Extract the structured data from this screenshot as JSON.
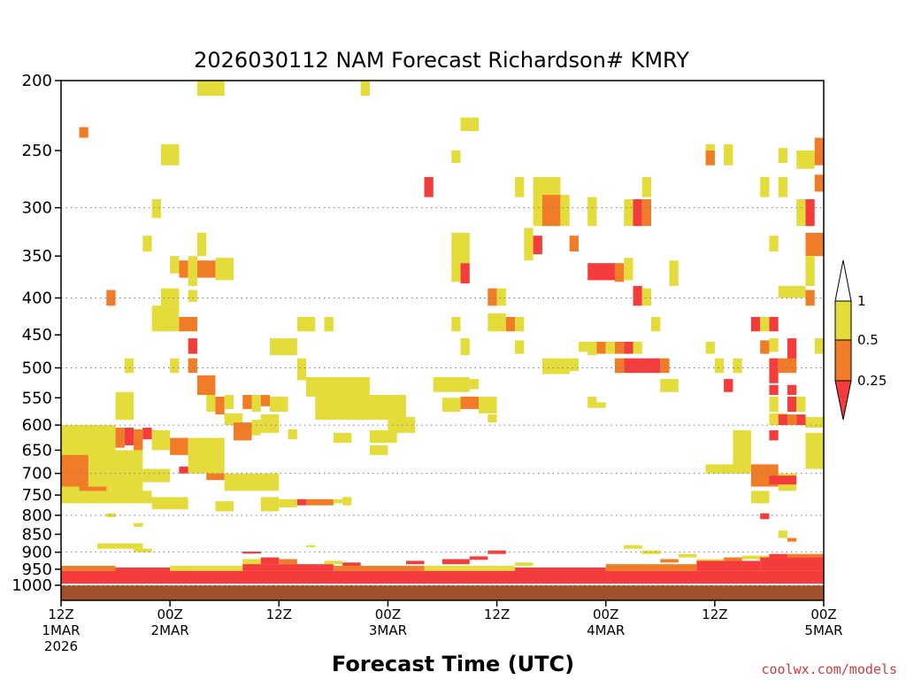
{
  "chart_data": {
    "type": "heatmap",
    "title": "2026030112 NAM Forecast Richardson# KMRY",
    "xlabel": "Forecast Time (UTC)",
    "ylabel": "",
    "credit": "coolwx.com/models",
    "x_range_hours": [
      0,
      84
    ],
    "y_axis": {
      "scale": "log",
      "range": [
        1000,
        200
      ]
    },
    "y_ticks": [
      200,
      250,
      300,
      350,
      400,
      450,
      500,
      550,
      600,
      650,
      700,
      750,
      800,
      850,
      900,
      950,
      1000
    ],
    "gridlines_at": [
      300,
      400,
      500,
      600,
      700,
      800,
      900,
      1000
    ],
    "x_ticks": [
      {
        "hour": 0,
        "lines": [
          "12Z",
          "1MAR",
          "2026"
        ]
      },
      {
        "hour": 12,
        "lines": [
          "00Z",
          "2MAR"
        ]
      },
      {
        "hour": 24,
        "lines": [
          "12Z"
        ]
      },
      {
        "hour": 36,
        "lines": [
          "00Z",
          "3MAR"
        ]
      },
      {
        "hour": 48,
        "lines": [
          "12Z"
        ]
      },
      {
        "hour": 60,
        "lines": [
          "00Z",
          "4MAR"
        ]
      },
      {
        "hour": 72,
        "lines": [
          "12Z"
        ]
      },
      {
        "hour": 84,
        "lines": [
          "00Z",
          "5MAR"
        ]
      }
    ],
    "legend": {
      "placement": "right",
      "labels": [
        "1",
        "0.5",
        "0.25"
      ],
      "bands": [
        {
          "range": [
            0.5,
            1
          ],
          "color": "#e3dc3a"
        },
        {
          "range": [
            0.25,
            0.5
          ],
          "color": "#f07c28"
        },
        {
          "range": [
            0,
            0.25
          ],
          "color": "#f53c3c"
        }
      ]
    },
    "colors": {
      "yellow": "#e3dc3a",
      "orange": "#f07c28",
      "red": "#f53c3c",
      "ground": "#a0522d"
    },
    "ground_below_hPa": 1000,
    "cells_format": "[start_hour, end_hour, top_hPa, bottom_hPa, class]",
    "cells": [
      [
        15,
        18,
        200,
        210,
        "yellow"
      ],
      [
        33,
        34,
        200,
        210,
        "yellow"
      ],
      [
        2,
        3,
        232,
        240,
        "orange"
      ],
      [
        44,
        46,
        225,
        235,
        "yellow"
      ],
      [
        43,
        44,
        250,
        260,
        "yellow"
      ],
      [
        11,
        13,
        245,
        262,
        "yellow"
      ],
      [
        71,
        72,
        245,
        262,
        "yellow"
      ],
      [
        71,
        72,
        250,
        262,
        "orange"
      ],
      [
        73,
        74,
        245,
        262,
        "yellow"
      ],
      [
        79,
        80,
        248,
        260,
        "yellow"
      ],
      [
        81,
        83,
        250,
        265,
        "yellow"
      ],
      [
        83,
        84,
        240,
        262,
        "orange"
      ],
      [
        40,
        41,
        272,
        290,
        "red"
      ],
      [
        50,
        51,
        272,
        290,
        "yellow"
      ],
      [
        52,
        55,
        272,
        290,
        "yellow"
      ],
      [
        64,
        65,
        272,
        290,
        "yellow"
      ],
      [
        77,
        78,
        272,
        290,
        "yellow"
      ],
      [
        79,
        80,
        272,
        290,
        "yellow"
      ],
      [
        83,
        84,
        270,
        285,
        "orange"
      ],
      [
        10,
        11,
        292,
        310,
        "yellow"
      ],
      [
        52,
        53,
        290,
        318,
        "yellow"
      ],
      [
        53,
        55,
        288,
        318,
        "orange"
      ],
      [
        55,
        56,
        288,
        318,
        "yellow"
      ],
      [
        58,
        59,
        290,
        318,
        "yellow"
      ],
      [
        62,
        63,
        292,
        318,
        "yellow"
      ],
      [
        63,
        64,
        292,
        318,
        "red"
      ],
      [
        64,
        65,
        292,
        318,
        "orange"
      ],
      [
        81,
        82,
        292,
        318,
        "yellow"
      ],
      [
        82,
        83,
        292,
        318,
        "red"
      ],
      [
        9,
        10,
        328,
        345,
        "yellow"
      ],
      [
        15,
        16,
        325,
        350,
        "yellow"
      ],
      [
        43,
        45,
        325,
        358,
        "yellow"
      ],
      [
        51,
        52,
        320,
        355,
        "yellow"
      ],
      [
        52,
        53,
        328,
        348,
        "red"
      ],
      [
        56,
        57,
        328,
        345,
        "orange"
      ],
      [
        78,
        79,
        328,
        345,
        "yellow"
      ],
      [
        82,
        84,
        325,
        350,
        "orange"
      ],
      [
        12,
        13,
        350,
        370,
        "yellow"
      ],
      [
        13,
        14,
        355,
        375,
        "orange"
      ],
      [
        14,
        15,
        350,
        385,
        "yellow"
      ],
      [
        15,
        17,
        355,
        375,
        "orange"
      ],
      [
        17,
        19,
        352,
        378,
        "yellow"
      ],
      [
        43,
        44,
        355,
        380,
        "yellow"
      ],
      [
        44,
        45,
        358,
        382,
        "red"
      ],
      [
        58,
        61,
        358,
        378,
        "red"
      ],
      [
        61,
        62,
        358,
        380,
        "orange"
      ],
      [
        62,
        63,
        352,
        378,
        "yellow"
      ],
      [
        67,
        68,
        355,
        385,
        "yellow"
      ],
      [
        82,
        83,
        350,
        385,
        "yellow"
      ],
      [
        5,
        6,
        390,
        410,
        "orange"
      ],
      [
        11,
        13,
        388,
        410,
        "yellow"
      ],
      [
        14,
        15,
        390,
        405,
        "yellow"
      ],
      [
        47,
        48,
        388,
        410,
        "orange"
      ],
      [
        48,
        49,
        388,
        410,
        "yellow"
      ],
      [
        63,
        64,
        385,
        410,
        "red"
      ],
      [
        64,
        65,
        388,
        410,
        "yellow"
      ],
      [
        79,
        82,
        385,
        400,
        "yellow"
      ],
      [
        82,
        83,
        390,
        410,
        "orange"
      ],
      [
        10,
        13,
        410,
        445,
        "yellow"
      ],
      [
        13,
        15,
        425,
        445,
        "orange"
      ],
      [
        26,
        28,
        425,
        445,
        "yellow"
      ],
      [
        29,
        30,
        425,
        445,
        "yellow"
      ],
      [
        43,
        44,
        425,
        445,
        "yellow"
      ],
      [
        47,
        49,
        420,
        445,
        "yellow"
      ],
      [
        49,
        50,
        425,
        445,
        "orange"
      ],
      [
        50,
        51,
        425,
        445,
        "yellow"
      ],
      [
        65,
        66,
        425,
        445,
        "yellow"
      ],
      [
        76,
        77,
        425,
        445,
        "red"
      ],
      [
        77,
        78,
        425,
        445,
        "yellow"
      ],
      [
        78,
        79,
        425,
        445,
        "red"
      ],
      [
        14,
        15,
        455,
        478,
        "red"
      ],
      [
        23,
        26,
        455,
        480,
        "yellow"
      ],
      [
        44,
        45,
        455,
        480,
        "yellow"
      ],
      [
        50,
        51,
        458,
        478,
        "yellow"
      ],
      [
        57,
        58,
        460,
        475,
        "yellow"
      ],
      [
        58,
        59,
        460,
        480,
        "yellow"
      ],
      [
        59,
        60,
        460,
        478,
        "orange"
      ],
      [
        60,
        61,
        460,
        478,
        "yellow"
      ],
      [
        61,
        62,
        460,
        478,
        "orange"
      ],
      [
        62,
        63,
        460,
        478,
        "red"
      ],
      [
        63,
        64,
        460,
        478,
        "yellow"
      ],
      [
        71,
        72,
        460,
        478,
        "yellow"
      ],
      [
        77,
        78,
        458,
        478,
        "orange"
      ],
      [
        78,
        79,
        455,
        475,
        "yellow"
      ],
      [
        80,
        81,
        455,
        488,
        "red"
      ],
      [
        83,
        84,
        455,
        478,
        "yellow"
      ],
      [
        7,
        8,
        485,
        508,
        "yellow"
      ],
      [
        12,
        13,
        485,
        508,
        "yellow"
      ],
      [
        14,
        15,
        485,
        508,
        "orange"
      ],
      [
        26,
        27,
        485,
        520,
        "yellow"
      ],
      [
        53,
        56,
        485,
        510,
        "yellow"
      ],
      [
        56,
        57,
        485,
        505,
        "yellow"
      ],
      [
        61,
        62,
        485,
        508,
        "orange"
      ],
      [
        62,
        66,
        485,
        508,
        "red"
      ],
      [
        66,
        67,
        485,
        508,
        "orange"
      ],
      [
        72,
        73,
        485,
        508,
        "yellow"
      ],
      [
        74,
        75,
        485,
        508,
        "yellow"
      ],
      [
        78,
        79,
        485,
        525,
        "red"
      ],
      [
        79,
        80,
        485,
        508,
        "orange"
      ],
      [
        80,
        81,
        485,
        508,
        "orange"
      ],
      [
        15,
        17,
        512,
        545,
        "orange"
      ],
      [
        27,
        34,
        515,
        548,
        "yellow"
      ],
      [
        41,
        45,
        515,
        540,
        "yellow"
      ],
      [
        45,
        46,
        518,
        535,
        "yellow"
      ],
      [
        66,
        68,
        518,
        540,
        "yellow"
      ],
      [
        73,
        74,
        518,
        540,
        "red"
      ],
      [
        78,
        79,
        528,
        545,
        "red"
      ],
      [
        80,
        81,
        528,
        545,
        "red"
      ],
      [
        6,
        8,
        540,
        590,
        "yellow"
      ],
      [
        16,
        17,
        545,
        575,
        "yellow"
      ],
      [
        17,
        18,
        548,
        580,
        "orange"
      ],
      [
        18,
        19,
        545,
        570,
        "yellow"
      ],
      [
        20,
        21,
        545,
        570,
        "orange"
      ],
      [
        21,
        22,
        545,
        575,
        "yellow"
      ],
      [
        22,
        23,
        545,
        565,
        "orange"
      ],
      [
        23,
        25,
        548,
        575,
        "yellow"
      ],
      [
        28,
        38,
        545,
        590,
        "yellow"
      ],
      [
        42,
        44,
        550,
        575,
        "yellow"
      ],
      [
        44,
        46,
        548,
        570,
        "orange"
      ],
      [
        46,
        48,
        548,
        578,
        "yellow"
      ],
      [
        58,
        59,
        548,
        568,
        "yellow"
      ],
      [
        59,
        60,
        558,
        568,
        "yellow"
      ],
      [
        78,
        79,
        548,
        575,
        "yellow"
      ],
      [
        80,
        81,
        548,
        575,
        "red"
      ],
      [
        81,
        82,
        548,
        575,
        "yellow"
      ],
      [
        18,
        20,
        578,
        600,
        "yellow"
      ],
      [
        19,
        21,
        595,
        630,
        "orange"
      ],
      [
        21,
        22,
        590,
        620,
        "yellow"
      ],
      [
        22,
        24,
        580,
        615,
        "yellow"
      ],
      [
        36,
        39,
        585,
        615,
        "yellow"
      ],
      [
        47,
        48,
        580,
        595,
        "yellow"
      ],
      [
        78,
        80,
        578,
        600,
        "yellow"
      ],
      [
        79,
        80,
        580,
        600,
        "red"
      ],
      [
        80,
        81,
        580,
        600,
        "orange"
      ],
      [
        81,
        82,
        580,
        600,
        "red"
      ],
      [
        82,
        84,
        585,
        605,
        "yellow"
      ],
      [
        0,
        6,
        600,
        650,
        "yellow"
      ],
      [
        6,
        7,
        605,
        645,
        "orange"
      ],
      [
        7,
        8,
        605,
        640,
        "red"
      ],
      [
        8,
        9,
        608,
        650,
        "orange"
      ],
      [
        9,
        10,
        605,
        628,
        "red"
      ],
      [
        10,
        12,
        610,
        650,
        "yellow"
      ],
      [
        12,
        14,
        625,
        660,
        "orange"
      ],
      [
        14,
        18,
        625,
        700,
        "yellow"
      ],
      [
        25,
        26,
        608,
        628,
        "yellow"
      ],
      [
        30,
        32,
        615,
        635,
        "yellow"
      ],
      [
        34,
        37,
        610,
        635,
        "yellow"
      ],
      [
        74,
        76,
        610,
        700,
        "yellow"
      ],
      [
        78,
        79,
        610,
        630,
        "red"
      ],
      [
        82,
        84,
        615,
        690,
        "yellow"
      ],
      [
        0,
        9,
        650,
        740,
        "yellow"
      ],
      [
        0,
        3,
        660,
        730,
        "orange"
      ],
      [
        9,
        12,
        690,
        720,
        "yellow"
      ],
      [
        13,
        14,
        685,
        700,
        "red"
      ],
      [
        16,
        18,
        700,
        715,
        "orange"
      ],
      [
        18,
        24,
        700,
        740,
        "yellow"
      ],
      [
        34,
        36,
        640,
        660,
        "yellow"
      ],
      [
        76,
        79,
        680,
        730,
        "orange"
      ],
      [
        79,
        81,
        700,
        740,
        "yellow"
      ],
      [
        78,
        81,
        705,
        725,
        "red"
      ],
      [
        71,
        76,
        680,
        700,
        "yellow"
      ],
      [
        2,
        5,
        730,
        760,
        "orange"
      ],
      [
        0,
        10,
        740,
        770,
        "yellow"
      ],
      [
        10,
        14,
        755,
        785,
        "yellow"
      ],
      [
        17,
        19,
        765,
        790,
        "yellow"
      ],
      [
        22,
        24,
        755,
        790,
        "yellow"
      ],
      [
        24,
        26,
        760,
        780,
        "yellow"
      ],
      [
        26,
        27,
        760,
        775,
        "red"
      ],
      [
        27,
        30,
        760,
        775,
        "orange"
      ],
      [
        30,
        31,
        760,
        770,
        "yellow"
      ],
      [
        31,
        32,
        755,
        775,
        "yellow"
      ],
      [
        76,
        78,
        740,
        770,
        "yellow"
      ],
      [
        5,
        6,
        795,
        805,
        "yellow"
      ],
      [
        8,
        9,
        820,
        830,
        "yellow"
      ],
      [
        77,
        78,
        795,
        810,
        "red"
      ],
      [
        79,
        80,
        840,
        860,
        "yellow"
      ],
      [
        80,
        81,
        860,
        870,
        "orange"
      ],
      [
        4,
        9,
        875,
        890,
        "yellow"
      ],
      [
        27,
        28,
        880,
        886,
        "yellow"
      ],
      [
        8,
        10,
        890,
        900,
        "yellow"
      ],
      [
        20,
        22,
        898,
        904,
        "red"
      ],
      [
        20,
        22,
        920,
        940,
        "yellow"
      ],
      [
        22,
        24,
        915,
        935,
        "red"
      ],
      [
        24,
        26,
        920,
        935,
        "orange"
      ],
      [
        29,
        31,
        925,
        935,
        "yellow"
      ],
      [
        31,
        33,
        930,
        940,
        "red"
      ],
      [
        38,
        40,
        925,
        935,
        "red"
      ],
      [
        42,
        45,
        920,
        935,
        "red"
      ],
      [
        45,
        47,
        912,
        922,
        "red"
      ],
      [
        47,
        49,
        895,
        905,
        "red"
      ],
      [
        50,
        52,
        930,
        940,
        "yellow"
      ],
      [
        62,
        64,
        880,
        890,
        "yellow"
      ],
      [
        64,
        66,
        895,
        905,
        "yellow"
      ],
      [
        66,
        68,
        920,
        930,
        "orange"
      ],
      [
        68,
        70,
        905,
        915,
        "yellow"
      ],
      [
        70,
        73,
        920,
        935,
        "yellow"
      ],
      [
        73,
        75,
        915,
        925,
        "orange"
      ],
      [
        75,
        78,
        910,
        920,
        "yellow"
      ],
      [
        78,
        80,
        905,
        915,
        "red"
      ],
      [
        80,
        84,
        905,
        915,
        "orange"
      ],
      [
        0,
        84,
        955,
        995,
        "red"
      ],
      [
        0,
        6,
        940,
        955,
        "orange"
      ],
      [
        6,
        12,
        945,
        958,
        "red"
      ],
      [
        12,
        20,
        940,
        955,
        "yellow"
      ],
      [
        20,
        30,
        935,
        955,
        "red"
      ],
      [
        30,
        40,
        940,
        955,
        "orange"
      ],
      [
        40,
        50,
        940,
        955,
        "yellow"
      ],
      [
        50,
        60,
        945,
        958,
        "red"
      ],
      [
        60,
        70,
        935,
        955,
        "orange"
      ],
      [
        70,
        77,
        925,
        955,
        "red"
      ],
      [
        77,
        84,
        915,
        955,
        "red"
      ]
    ]
  }
}
